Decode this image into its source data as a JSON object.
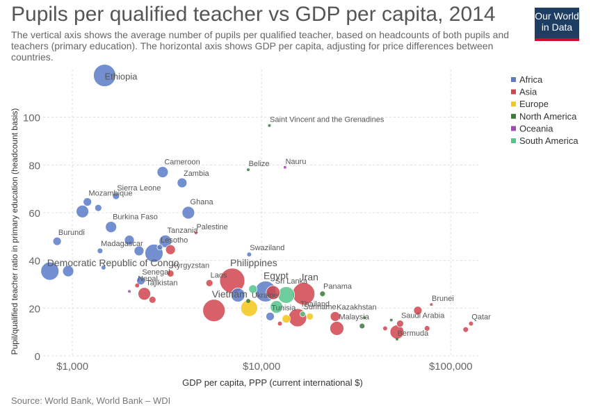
{
  "title": "Pupils per qualified teacher vs GDP per capita, 2014",
  "subtitle": "The vertical axis shows the average number of pupils per qualified teacher, based on headcounts of both pupils and teachers (primary education). The horizontal axis shows GDP per capita, adjusting for price differences between countries.",
  "logo": {
    "line1": "Our World",
    "line2": "in Data",
    "bg": "#1d3d63",
    "stripe": "#c8102e"
  },
  "source": "Source: World Bank, World Bank – WDI",
  "chart_data": {
    "type": "scatter",
    "xlabel": "GDP per capita, PPP (current international $)",
    "ylabel": "Pupil/qualified teacher ratio in primary education (headcount basis)",
    "xscale": "log",
    "xlim": [
      700,
      140000
    ],
    "ylim": [
      0,
      120
    ],
    "xticks": [
      {
        "value": 1000,
        "label": "$1,000"
      },
      {
        "value": 10000,
        "label": "$10,000"
      },
      {
        "value": 100000,
        "label": "$100,000"
      }
    ],
    "yticks": [
      0,
      20,
      40,
      60,
      80,
      100
    ],
    "grid": true,
    "legend_position": "right",
    "groups": [
      {
        "name": "Africa",
        "color": "#5b7bc7"
      },
      {
        "name": "Asia",
        "color": "#d1444d"
      },
      {
        "name": "Europe",
        "color": "#f5c518"
      },
      {
        "name": "North America",
        "color": "#3a7a3a"
      },
      {
        "name": "Oceania",
        "color": "#a347b8"
      },
      {
        "name": "South America",
        "color": "#55c48b"
      }
    ],
    "points": [
      {
        "label": "Ethiopia",
        "group": "Africa",
        "x": 1480,
        "y": 117.5,
        "r": 16
      },
      {
        "label": "Saint Vincent and the Grenadines",
        "group": "North America",
        "x": 11000,
        "y": 96.5,
        "r": 2
      },
      {
        "label": "Cameroon",
        "group": "Africa",
        "x": 3000,
        "y": 77,
        "r": 8
      },
      {
        "label": "Belize",
        "group": "North America",
        "x": 8500,
        "y": 78,
        "r": 2
      },
      {
        "label": "Nauru",
        "group": "Oceania",
        "x": 13300,
        "y": 79,
        "r": 2
      },
      {
        "label": "Zambia",
        "group": "Africa",
        "x": 3800,
        "y": 72.5,
        "r": 7
      },
      {
        "label": "Sierra Leone",
        "group": "Africa",
        "x": 1700,
        "y": 67,
        "r": 5
      },
      {
        "label": "Mozambique",
        "group": "Africa",
        "x": 1200,
        "y": 64.5,
        "r": 6
      },
      {
        "label": "",
        "group": "Africa",
        "x": 1370,
        "y": 62,
        "r": 5
      },
      {
        "label": "",
        "group": "Africa",
        "x": 1130,
        "y": 60.5,
        "r": 9
      },
      {
        "label": "Ghana",
        "group": "Africa",
        "x": 4100,
        "y": 60,
        "r": 9
      },
      {
        "label": "Burkina Faso",
        "group": "Africa",
        "x": 1600,
        "y": 54,
        "r": 8
      },
      {
        "label": "Palestine",
        "group": "Asia",
        "x": 4500,
        "y": 51.5,
        "r": 2
      },
      {
        "label": "Burundi",
        "group": "Africa",
        "x": 830,
        "y": 48,
        "r": 6
      },
      {
        "label": "Tanzania",
        "group": "Africa",
        "x": 3100,
        "y": 48,
        "r": 9
      },
      {
        "label": "",
        "group": "Africa",
        "x": 2000,
        "y": 48.5,
        "r": 7
      },
      {
        "label": "Madagascar",
        "group": "Africa",
        "x": 1400,
        "y": 44,
        "r": 4
      },
      {
        "label": "Lesotho",
        "group": "Africa",
        "x": 2900,
        "y": 45.5,
        "r": 4
      },
      {
        "label": "",
        "group": "Asia",
        "x": 3300,
        "y": 44.5,
        "r": 7
      },
      {
        "label": "",
        "group": "Africa",
        "x": 2250,
        "y": 44,
        "r": 7
      },
      {
        "label": "",
        "group": "Africa",
        "x": 2700,
        "y": 43,
        "r": 13
      },
      {
        "label": "Swaziland",
        "group": "Africa",
        "x": 8600,
        "y": 42.5,
        "r": 3
      },
      {
        "label": "Democratic Republic of Congo",
        "group": "Africa",
        "x": 760,
        "y": 35.5,
        "r": 13
      },
      {
        "label": "",
        "group": "Africa",
        "x": 950,
        "y": 35.5,
        "r": 8
      },
      {
        "label": "",
        "group": "Africa",
        "x": 1460,
        "y": 37,
        "r": 3
      },
      {
        "label": "Kyrgyzstan",
        "group": "Asia",
        "x": 3300,
        "y": 34.5,
        "r": 5
      },
      {
        "label": "Senegal",
        "group": "Africa",
        "x": 2300,
        "y": 31.5,
        "r": 6
      },
      {
        "label": "Philippines",
        "group": "Asia",
        "x": 7000,
        "y": 31.5,
        "r": 18
      },
      {
        "label": "Laos",
        "group": "Asia",
        "x": 5300,
        "y": 30.5,
        "r": 5
      },
      {
        "label": "Nepal",
        "group": "Asia",
        "x": 2200,
        "y": 29.5,
        "r": 3
      },
      {
        "label": "Egypt",
        "group": "Africa",
        "x": 10500,
        "y": 27,
        "r": 15
      },
      {
        "label": "Sri Lanka",
        "group": "Asia",
        "x": 11500,
        "y": 26.5,
        "r": 10
      },
      {
        "label": "Iran",
        "group": "Asia",
        "x": 16700,
        "y": 26,
        "r": 16
      },
      {
        "label": "",
        "group": "South America",
        "x": 13500,
        "y": 25.5,
        "r": 12
      },
      {
        "label": "Panama",
        "group": "North America",
        "x": 21000,
        "y": 26,
        "r": 4
      },
      {
        "label": "",
        "group": "South America",
        "x": 9000,
        "y": 28,
        "r": 6
      },
      {
        "label": "",
        "group": "Oceania",
        "x": 2000,
        "y": 27,
        "r": 2
      },
      {
        "label": "Tajikistan",
        "group": "Asia",
        "x": 2400,
        "y": 26,
        "r": 9
      },
      {
        "label": "",
        "group": "Asia",
        "x": 2650,
        "y": 23.5,
        "r": 5
      },
      {
        "label": "Vietnam",
        "group": "Asia",
        "x": 5600,
        "y": 19,
        "r": 16
      },
      {
        "label": "",
        "group": "Africa",
        "x": 7500,
        "y": 25.5,
        "r": 10
      },
      {
        "label": "Ukraine",
        "group": "Europe",
        "x": 8600,
        "y": 20,
        "r": 12
      },
      {
        "label": "",
        "group": "North America",
        "x": 8500,
        "y": 23,
        "r": 3
      },
      {
        "label": "",
        "group": "South America",
        "x": 12000,
        "y": 20.5,
        "r": 9
      },
      {
        "label": "Thailand",
        "group": "Asia",
        "x": 15500,
        "y": 16,
        "r": 13
      },
      {
        "label": "Tunisia",
        "group": "Africa",
        "x": 11100,
        "y": 16.5,
        "r": 6
      },
      {
        "label": "Suriname",
        "group": "South America",
        "x": 16500,
        "y": 17.5,
        "r": 4
      },
      {
        "label": "",
        "group": "Europe",
        "x": 13500,
        "y": 15.5,
        "r": 6
      },
      {
        "label": "",
        "group": "Europe",
        "x": 18000,
        "y": 16.5,
        "r": 5
      },
      {
        "label": "",
        "group": "Asia",
        "x": 12500,
        "y": 13.5,
        "r": 3
      },
      {
        "label": "Kazakhstan",
        "group": "Asia",
        "x": 24500,
        "y": 16.5,
        "r": 7
      },
      {
        "label": "Malaysia",
        "group": "Asia",
        "x": 25000,
        "y": 11.5,
        "r": 10
      },
      {
        "label": "",
        "group": "North America",
        "x": 34000,
        "y": 12.5,
        "r": 4
      },
      {
        "label": "",
        "group": "North America",
        "x": 35000,
        "y": 16,
        "r": 2
      },
      {
        "label": "Saudi Arabia",
        "group": "Asia",
        "x": 54000,
        "y": 13.5,
        "r": 5
      },
      {
        "label": "",
        "group": "Asia",
        "x": 52000,
        "y": 10,
        "r": 10
      },
      {
        "label": "",
        "group": "North America",
        "x": 48500,
        "y": 15,
        "r": 2
      },
      {
        "label": "",
        "group": "Asia",
        "x": 45000,
        "y": 11.5,
        "r": 3
      },
      {
        "label": "Bermuda",
        "group": "North America",
        "x": 52000,
        "y": 7,
        "r": 2
      },
      {
        "label": "",
        "group": "Asia",
        "x": 67000,
        "y": 19,
        "r": 6
      },
      {
        "label": "Brunei",
        "group": "Asia",
        "x": 79000,
        "y": 21.5,
        "r": 2
      },
      {
        "label": "",
        "group": "Asia",
        "x": 75000,
        "y": 11.5,
        "r": 4
      },
      {
        "label": "Qatar",
        "group": "Asia",
        "x": 128000,
        "y": 13.5,
        "r": 3
      },
      {
        "label": "",
        "group": "Asia",
        "x": 120000,
        "y": 11,
        "r": 4
      }
    ]
  }
}
